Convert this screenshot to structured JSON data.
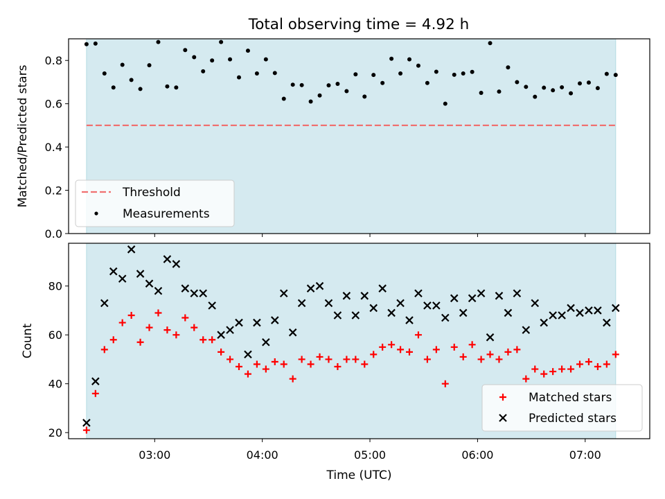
{
  "figure_title": "Total observing time = 4.92 h",
  "colors": {
    "observing_span": "#d5eaf0",
    "threshold": "#f07070",
    "measurements": "#000000",
    "matched": "#ff0000",
    "predicted": "#000000"
  },
  "chart_data": [
    {
      "id": "ratio",
      "type": "scatter",
      "ylabel": "Matched/Predicted stars",
      "xlim": [
        "02:12",
        "07:36"
      ],
      "ylim": [
        0,
        0.9
      ],
      "yticks": [
        0.0,
        0.2,
        0.4,
        0.6,
        0.8
      ],
      "ytick_labels": [
        "0.0",
        "0.2",
        "0.4",
        "0.6",
        "0.8"
      ],
      "observing_span": [
        "02:22",
        "07:17"
      ],
      "legend": {
        "position": "lower-left",
        "entries": [
          "Threshold",
          "Measurements"
        ]
      },
      "series": [
        {
          "name": "Threshold",
          "kind": "dashed-line",
          "y": 0.5,
          "x_range": [
            "02:22",
            "07:17"
          ]
        },
        {
          "name": "Measurements",
          "kind": "dots",
          "x": [
            "02:22",
            "02:27",
            "02:32",
            "02:37",
            "02:42",
            "02:47",
            "02:52",
            "02:57",
            "03:02",
            "03:07",
            "03:12",
            "03:17",
            "03:22",
            "03:27",
            "03:32",
            "03:37",
            "03:42",
            "03:47",
            "03:52",
            "03:57",
            "04:02",
            "04:07",
            "04:12",
            "04:17",
            "04:22",
            "04:27",
            "04:32",
            "04:37",
            "04:42",
            "04:47",
            "04:52",
            "04:57",
            "05:02",
            "05:07",
            "05:12",
            "05:17",
            "05:22",
            "05:27",
            "05:32",
            "05:37",
            "05:42",
            "05:47",
            "05:52",
            "05:57",
            "06:02",
            "06:07",
            "06:12",
            "06:17",
            "06:22",
            "06:27",
            "06:32",
            "06:37",
            "06:42",
            "06:47",
            "06:52",
            "06:57",
            "07:02",
            "07:07",
            "07:12",
            "07:17"
          ],
          "y": [
            0.875,
            0.878,
            0.74,
            0.675,
            0.78,
            0.71,
            0.668,
            0.778,
            0.885,
            0.68,
            0.675,
            0.848,
            0.815,
            0.75,
            0.8,
            0.885,
            0.805,
            0.722,
            0.845,
            0.74,
            0.805,
            0.742,
            0.623,
            0.688,
            0.686,
            0.61,
            0.638,
            0.685,
            0.692,
            0.658,
            0.736,
            0.633,
            0.733,
            0.696,
            0.808,
            0.74,
            0.805,
            0.776,
            0.696,
            0.748,
            0.6,
            0.734,
            0.74,
            0.747,
            0.65,
            0.88,
            0.656,
            0.768,
            0.7,
            0.678,
            0.632,
            0.674,
            0.662,
            0.676,
            0.648,
            0.694,
            0.698,
            0.672,
            0.738,
            0.733
          ]
        }
      ]
    },
    {
      "id": "counts",
      "type": "scatter",
      "ylabel": "Count",
      "xlabel": "Time (UTC)",
      "xlim": [
        "02:12",
        "07:36"
      ],
      "ylim": [
        17.5,
        97.5
      ],
      "xticks": [
        "03:00",
        "04:00",
        "05:00",
        "06:00",
        "07:00"
      ],
      "yticks": [
        20,
        40,
        60,
        80
      ],
      "ytick_labels": [
        "20",
        "40",
        "60",
        "80"
      ],
      "observing_span": [
        "02:22",
        "07:17"
      ],
      "legend": {
        "position": "lower-right",
        "entries": [
          "Matched stars",
          "Predicted stars"
        ]
      },
      "x": [
        "02:22",
        "02:27",
        "02:32",
        "02:37",
        "02:42",
        "02:47",
        "02:52",
        "02:57",
        "03:02",
        "03:07",
        "03:12",
        "03:17",
        "03:22",
        "03:27",
        "03:32",
        "03:37",
        "03:42",
        "03:47",
        "03:52",
        "03:57",
        "04:02",
        "04:07",
        "04:12",
        "04:17",
        "04:22",
        "04:27",
        "04:32",
        "04:37",
        "04:42",
        "04:47",
        "04:52",
        "04:57",
        "05:02",
        "05:07",
        "05:12",
        "05:17",
        "05:22",
        "05:27",
        "05:32",
        "05:37",
        "05:42",
        "05:47",
        "05:52",
        "05:57",
        "06:02",
        "06:07",
        "06:12",
        "06:17",
        "06:22",
        "06:27",
        "06:32",
        "06:37",
        "06:42",
        "06:47",
        "06:52",
        "06:57",
        "07:02",
        "07:07",
        "07:12",
        "07:17"
      ],
      "series": [
        {
          "name": "Matched stars",
          "marker": "plus",
          "values": [
            21,
            36,
            54,
            58,
            65,
            68,
            57,
            63,
            69,
            62,
            60,
            67,
            63,
            58,
            58,
            53,
            50,
            47,
            44,
            48,
            46,
            49,
            48,
            42,
            50,
            48,
            51,
            50,
            47,
            50,
            50,
            48,
            52,
            55,
            56,
            54,
            53,
            60,
            50,
            54,
            40,
            55,
            51,
            56,
            50,
            52,
            50,
            53,
            54,
            42,
            46,
            44,
            45,
            46,
            46,
            48,
            49,
            47,
            48,
            52
          ]
        },
        {
          "name": "Predicted stars",
          "marker": "x",
          "values": [
            24,
            41,
            73,
            86,
            83,
            95,
            85,
            81,
            78,
            91,
            89,
            79,
            77,
            77,
            72,
            60,
            62,
            65,
            52,
            65,
            57,
            66,
            77,
            61,
            73,
            79,
            80,
            73,
            68,
            76,
            68,
            76,
            71,
            79,
            69,
            73,
            66,
            77,
            72,
            72,
            67,
            75,
            69,
            75,
            77,
            59,
            76,
            69,
            77,
            62,
            73,
            65,
            68,
            68,
            71,
            69,
            70,
            70,
            65,
            71
          ]
        }
      ]
    }
  ]
}
